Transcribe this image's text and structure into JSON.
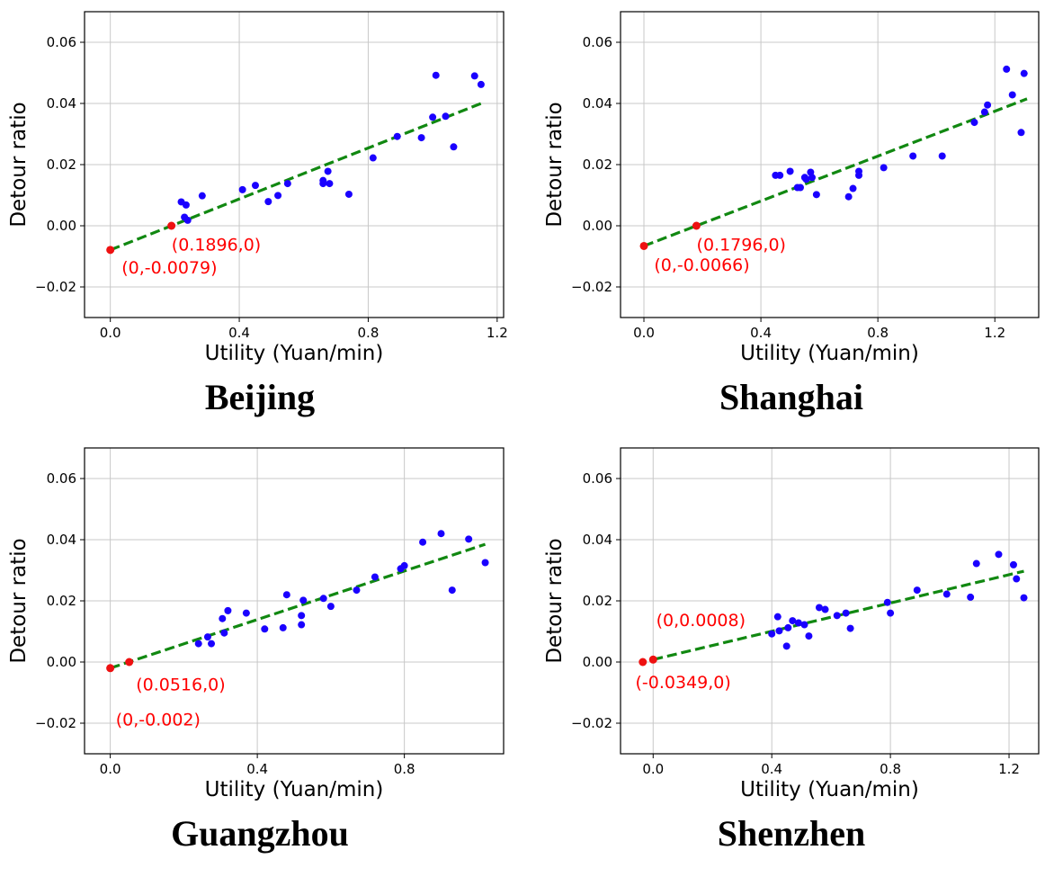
{
  "chart_data": [
    {
      "type": "scatter",
      "title": "Beijing",
      "xlabel": "Utility (Yuan/min)",
      "ylabel": "Detour ratio",
      "xlim": [
        -0.08,
        1.22
      ],
      "ylim": [
        -0.03,
        0.07
      ],
      "xticks": [
        0.0,
        0.4,
        0.8,
        1.2
      ],
      "xtick_labels": [
        "0.0",
        "0.4",
        "0.8",
        "1.2"
      ],
      "yticks": [
        -0.02,
        0.0,
        0.02,
        0.04,
        0.06
      ],
      "ytick_labels": [
        "−0.02",
        "0.00",
        "0.02",
        "0.04",
        "0.06"
      ],
      "grid": true,
      "points": [
        {
          "x": 0.22,
          "y": 0.0078
        },
        {
          "x": 0.235,
          "y": 0.0068
        },
        {
          "x": 0.23,
          "y": 0.0028
        },
        {
          "x": 0.24,
          "y": 0.0018
        },
        {
          "x": 0.285,
          "y": 0.0098
        },
        {
          "x": 0.41,
          "y": 0.0118
        },
        {
          "x": 0.45,
          "y": 0.0132
        },
        {
          "x": 0.49,
          "y": 0.0079
        },
        {
          "x": 0.52,
          "y": 0.0099
        },
        {
          "x": 0.55,
          "y": 0.0138
        },
        {
          "x": 0.66,
          "y": 0.0148
        },
        {
          "x": 0.66,
          "y": 0.0138
        },
        {
          "x": 0.675,
          "y": 0.0178
        },
        {
          "x": 0.68,
          "y": 0.0138
        },
        {
          "x": 0.74,
          "y": 0.0103
        },
        {
          "x": 0.815,
          "y": 0.0222
        },
        {
          "x": 0.89,
          "y": 0.0292
        },
        {
          "x": 0.965,
          "y": 0.0288
        },
        {
          "x": 1.0,
          "y": 0.0355
        },
        {
          "x": 1.04,
          "y": 0.0358
        },
        {
          "x": 1.065,
          "y": 0.0258
        },
        {
          "x": 1.01,
          "y": 0.0492
        },
        {
          "x": 1.13,
          "y": 0.049
        },
        {
          "x": 1.15,
          "y": 0.0462
        }
      ],
      "red_points": [
        {
          "x": 0.0,
          "y": -0.0079
        },
        {
          "x": 0.1896,
          "y": 0.0
        }
      ],
      "fit_line": {
        "x": [
          0.0,
          1.15
        ],
        "y": [
          -0.0079,
          0.04
        ]
      },
      "annotations": [
        {
          "text": "(0.1896,0)",
          "x": 0.19,
          "y": -0.0081
        },
        {
          "text": "(0,-0.0079)",
          "x": 0.035,
          "y": -0.0156
        }
      ]
    },
    {
      "type": "scatter",
      "title": "Shanghai",
      "xlabel": "Utility (Yuan/min)",
      "ylabel": "Detour ratio",
      "xlim": [
        -0.08,
        1.35
      ],
      "ylim": [
        -0.03,
        0.07
      ],
      "xticks": [
        0.0,
        0.4,
        0.8,
        1.2
      ],
      "xtick_labels": [
        "0.0",
        "0.4",
        "0.8",
        "1.2"
      ],
      "yticks": [
        -0.02,
        0.0,
        0.02,
        0.04,
        0.06
      ],
      "ytick_labels": [
        "−0.02",
        "0.00",
        "0.02",
        "0.04",
        "0.06"
      ],
      "grid": true,
      "points": [
        {
          "x": 0.45,
          "y": 0.0165
        },
        {
          "x": 0.465,
          "y": 0.0165
        },
        {
          "x": 0.5,
          "y": 0.0178
        },
        {
          "x": 0.525,
          "y": 0.0125
        },
        {
          "x": 0.535,
          "y": 0.0125
        },
        {
          "x": 0.55,
          "y": 0.0158
        },
        {
          "x": 0.555,
          "y": 0.0152
        },
        {
          "x": 0.57,
          "y": 0.0175
        },
        {
          "x": 0.575,
          "y": 0.0158
        },
        {
          "x": 0.59,
          "y": 0.0102
        },
        {
          "x": 0.7,
          "y": 0.0095
        },
        {
          "x": 0.715,
          "y": 0.0122
        },
        {
          "x": 0.735,
          "y": 0.0178
        },
        {
          "x": 0.735,
          "y": 0.0165
        },
        {
          "x": 0.82,
          "y": 0.019
        },
        {
          "x": 0.92,
          "y": 0.0228
        },
        {
          "x": 1.02,
          "y": 0.0228
        },
        {
          "x": 1.13,
          "y": 0.0338
        },
        {
          "x": 1.165,
          "y": 0.0372
        },
        {
          "x": 1.175,
          "y": 0.0395
        },
        {
          "x": 1.24,
          "y": 0.0512
        },
        {
          "x": 1.26,
          "y": 0.0428
        },
        {
          "x": 1.3,
          "y": 0.0498
        },
        {
          "x": 1.29,
          "y": 0.0305
        }
      ],
      "red_points": [
        {
          "x": 0.0,
          "y": -0.0066
        },
        {
          "x": 0.1796,
          "y": 0.0
        }
      ],
      "fit_line": {
        "x": [
          0.0,
          1.31
        ],
        "y": [
          -0.0066,
          0.0415
        ]
      },
      "annotations": [
        {
          "text": "(0.1796,0)",
          "x": 0.18,
          "y": -0.0081
        },
        {
          "text": "(0,-0.0066)",
          "x": 0.035,
          "y": -0.0147
        }
      ]
    },
    {
      "type": "scatter",
      "title": "Guangzhou",
      "xlabel": "Utility (Yuan/min)",
      "ylabel": "Detour ratio",
      "xlim": [
        -0.07,
        1.07
      ],
      "ylim": [
        -0.03,
        0.07
      ],
      "xticks": [
        0.0,
        0.4,
        0.8
      ],
      "xtick_labels": [
        "0.0",
        "0.4",
        "0.8"
      ],
      "yticks": [
        -0.02,
        0.0,
        0.02,
        0.04,
        0.06
      ],
      "ytick_labels": [
        "−0.02",
        "0.00",
        "0.02",
        "0.04",
        "0.06"
      ],
      "grid": true,
      "points": [
        {
          "x": 0.24,
          "y": 0.006
        },
        {
          "x": 0.265,
          "y": 0.0082
        },
        {
          "x": 0.275,
          "y": 0.006
        },
        {
          "x": 0.305,
          "y": 0.0142
        },
        {
          "x": 0.31,
          "y": 0.0095
        },
        {
          "x": 0.32,
          "y": 0.0168
        },
        {
          "x": 0.37,
          "y": 0.016
        },
        {
          "x": 0.42,
          "y": 0.0108
        },
        {
          "x": 0.47,
          "y": 0.0112
        },
        {
          "x": 0.48,
          "y": 0.022
        },
        {
          "x": 0.52,
          "y": 0.0152
        },
        {
          "x": 0.52,
          "y": 0.0122
        },
        {
          "x": 0.525,
          "y": 0.0202
        },
        {
          "x": 0.58,
          "y": 0.0208
        },
        {
          "x": 0.6,
          "y": 0.0182
        },
        {
          "x": 0.67,
          "y": 0.0235
        },
        {
          "x": 0.72,
          "y": 0.0278
        },
        {
          "x": 0.79,
          "y": 0.0305
        },
        {
          "x": 0.8,
          "y": 0.0315
        },
        {
          "x": 0.85,
          "y": 0.0392
        },
        {
          "x": 0.9,
          "y": 0.042
        },
        {
          "x": 0.93,
          "y": 0.0235
        },
        {
          "x": 0.975,
          "y": 0.0402
        },
        {
          "x": 1.02,
          "y": 0.0325
        }
      ],
      "red_points": [
        {
          "x": 0.0,
          "y": -0.002
        },
        {
          "x": 0.0516,
          "y": 0.0
        }
      ],
      "fit_line": {
        "x": [
          0.0,
          1.02
        ],
        "y": [
          -0.002,
          0.0385
        ]
      },
      "annotations": [
        {
          "text": "(0.0516,0)",
          "x": 0.07,
          "y": -0.0093
        },
        {
          "text": "(0,-0.002)",
          "x": 0.015,
          "y": -0.0207
        }
      ]
    },
    {
      "type": "scatter",
      "title": "Shenzhen",
      "xlabel": "Utility (Yuan/min)",
      "ylabel": "Detour ratio",
      "xlim": [
        -0.11,
        1.3
      ],
      "ylim": [
        -0.03,
        0.07
      ],
      "xticks": [
        0.0,
        0.4,
        0.8,
        1.2
      ],
      "xtick_labels": [
        "0.0",
        "0.4",
        "0.8",
        "1.2"
      ],
      "yticks": [
        -0.02,
        0.0,
        0.02,
        0.04,
        0.06
      ],
      "ytick_labels": [
        "−0.02",
        "0.00",
        "0.02",
        "0.04",
        "0.06"
      ],
      "grid": true,
      "points": [
        {
          "x": 0.4,
          "y": 0.0092
        },
        {
          "x": 0.42,
          "y": 0.0148
        },
        {
          "x": 0.425,
          "y": 0.0102
        },
        {
          "x": 0.45,
          "y": 0.0052
        },
        {
          "x": 0.455,
          "y": 0.0112
        },
        {
          "x": 0.47,
          "y": 0.0135
        },
        {
          "x": 0.49,
          "y": 0.0128
        },
        {
          "x": 0.51,
          "y": 0.0122
        },
        {
          "x": 0.525,
          "y": 0.0085
        },
        {
          "x": 0.56,
          "y": 0.0178
        },
        {
          "x": 0.58,
          "y": 0.0172
        },
        {
          "x": 0.62,
          "y": 0.0152
        },
        {
          "x": 0.65,
          "y": 0.016
        },
        {
          "x": 0.665,
          "y": 0.011
        },
        {
          "x": 0.79,
          "y": 0.0195
        },
        {
          "x": 0.8,
          "y": 0.016
        },
        {
          "x": 0.89,
          "y": 0.0235
        },
        {
          "x": 0.99,
          "y": 0.0222
        },
        {
          "x": 1.07,
          "y": 0.0212
        },
        {
          "x": 1.09,
          "y": 0.0322
        },
        {
          "x": 1.165,
          "y": 0.0352
        },
        {
          "x": 1.215,
          "y": 0.0318
        },
        {
          "x": 1.225,
          "y": 0.0272
        },
        {
          "x": 1.25,
          "y": 0.021
        }
      ],
      "red_points": [
        {
          "x": -0.0349,
          "y": 0.0
        },
        {
          "x": 0.0,
          "y": 0.0008
        }
      ],
      "fit_line": {
        "x": [
          0.0,
          1.25
        ],
        "y": [
          0.0008,
          0.0297
        ]
      },
      "annotations": [
        {
          "text": "(0,0.0008)",
          "x": 0.01,
          "y": 0.0118
        },
        {
          "text": "(-0.0349,0)",
          "x": -0.06,
          "y": -0.0086
        }
      ]
    }
  ],
  "colors": {
    "points": "#1a00ff",
    "highlight_points": "#ee1111",
    "fit_line": "#118811",
    "annotation": "#ff0000",
    "grid": "#c8c8c8"
  },
  "fit_line_style": "dashed"
}
